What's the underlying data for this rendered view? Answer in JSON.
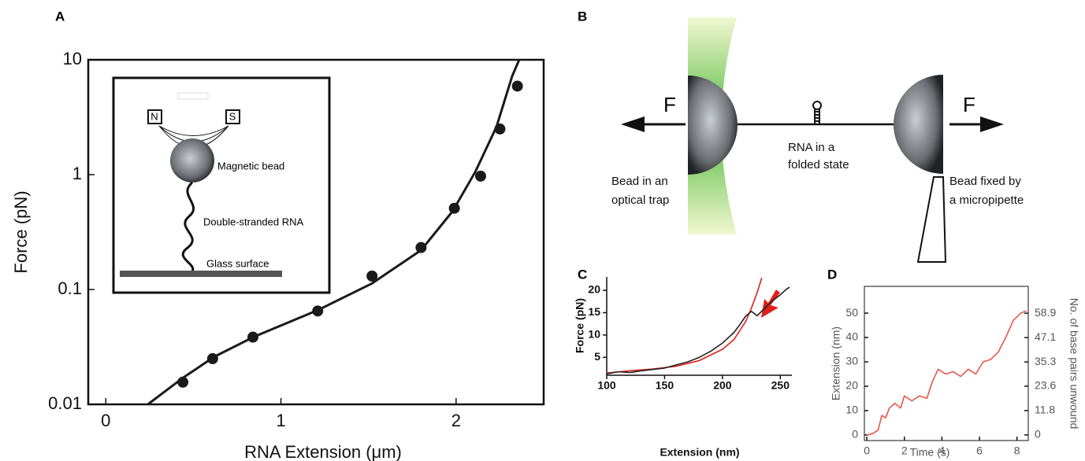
{
  "chart_data": [
    {
      "type": "scatter",
      "label": "A",
      "xlabel": "RNA Extension (μm)",
      "ylabel": "Force (pN)",
      "xlim": [
        -0.1,
        2.5
      ],
      "ylim": [
        0.01,
        10
      ],
      "ylog": true,
      "xticks": [
        0,
        1,
        2
      ],
      "yticks": [
        0.01,
        0.1,
        1,
        10
      ],
      "annotations": [
        "N",
        "S",
        "Magnetic bead",
        "Double-stranded RNA",
        "Glass surface"
      ],
      "series": [
        {
          "mode": "markers",
          "color": "#1a1a1a",
          "x": [
            0.44,
            0.61,
            0.84,
            1.21,
            1.52,
            1.8,
            1.99,
            2.14,
            2.25,
            2.35
          ],
          "values": [
            0.0156,
            0.025,
            0.0385,
            0.065,
            0.131,
            0.232,
            0.51,
            0.97,
            2.5,
            5.9
          ]
        },
        {
          "mode": "line",
          "color": "#1a1a1a",
          "x": [
            0.24,
            0.44,
            0.62,
            0.85,
            1.21,
            1.52,
            1.8,
            1.98,
            2.11,
            2.23,
            2.32,
            2.36
          ],
          "values": [
            0.01,
            0.017,
            0.026,
            0.039,
            0.066,
            0.113,
            0.22,
            0.48,
            1.06,
            2.6,
            7.2,
            10
          ]
        }
      ]
    },
    {
      "type": "line",
      "label": "C",
      "xlabel": "Extension (nm)",
      "ylabel": "Force (pN)",
      "xlim": [
        100,
        260
      ],
      "ylim": [
        1,
        23
      ],
      "xticks": [
        100,
        150,
        200,
        250
      ],
      "yticks": [
        5,
        10,
        15,
        20
      ],
      "series": [
        {
          "mode": "line",
          "color": "#e0201b",
          "x": [
            100,
            120,
            140,
            160,
            180,
            200,
            210,
            220,
            225,
            230,
            234
          ],
          "values": [
            1.5,
            2.0,
            2.4,
            3.0,
            4.3,
            6.8,
            9.0,
            13,
            16,
            19.5,
            22.8
          ]
        },
        {
          "mode": "line",
          "color": "#222222",
          "x": [
            100,
            110,
            120,
            130,
            140,
            150,
            160,
            170,
            180,
            190,
            200,
            210,
            215,
            220,
            225,
            230,
            235,
            240,
            245,
            250,
            255,
            258
          ],
          "values": [
            1.3,
            1.8,
            1.6,
            2.0,
            2.3,
            2.6,
            3.3,
            4.0,
            5.0,
            6.4,
            8.2,
            10.6,
            12.3,
            14.2,
            15.3,
            14.3,
            15.6,
            16.9,
            18.0,
            19.0,
            20.2,
            20.7
          ]
        }
      ]
    },
    {
      "type": "line",
      "label": "D",
      "xlabel": "Time (s)",
      "ylabel": "Extension (nm)",
      "y2label": "No. of base pairs unwound",
      "xlim": [
        -0.13,
        8.6
      ],
      "ylim": [
        -2.3,
        61
      ],
      "y2lim": [
        -2.71,
        71.9
      ],
      "xticks": [
        0,
        2,
        4,
        6,
        8
      ],
      "yticks": [
        0,
        10,
        20,
        30,
        40,
        50
      ],
      "y2ticks": [
        0,
        11.8,
        23.6,
        35.3,
        47.1,
        58.9
      ],
      "series": [
        {
          "mode": "line",
          "color": "#e8564a",
          "x": [
            0,
            0.3,
            0.6,
            0.8,
            1.0,
            1.2,
            1.5,
            1.8,
            2.0,
            2.4,
            2.8,
            3.2,
            3.5,
            3.8,
            4.2,
            4.6,
            5.0,
            5.4,
            5.8,
            6.2,
            6.6,
            7.0,
            7.4,
            7.8,
            8.2,
            8.5
          ],
          "values": [
            0,
            0.5,
            2,
            8,
            7,
            11,
            13,
            11,
            16,
            14,
            16,
            15,
            22,
            27,
            25,
            26,
            24,
            27,
            25,
            30,
            31,
            34,
            40,
            47,
            50,
            51
          ]
        }
      ]
    }
  ],
  "diagram": {
    "label": "B",
    "force_left": "F",
    "force_right": "F",
    "left_bead": [
      "Bead in an",
      "optical trap"
    ],
    "rna": [
      "RNA in a",
      "folded state"
    ],
    "right_bead": [
      "Bead fixed by",
      "a micropipette"
    ]
  }
}
